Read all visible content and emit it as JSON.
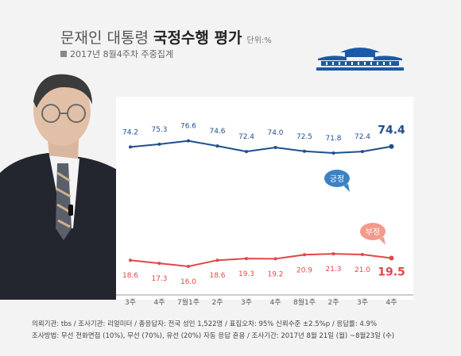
{
  "header": {
    "title_main": "문재인 대통령",
    "title_strong": "국정수행 평가",
    "unit": "단위:%",
    "subtitle": "2017년 8월4주차 주중집계"
  },
  "chart_data": {
    "type": "line",
    "categories": [
      "3주",
      "4주",
      "7월1주",
      "2주",
      "3주",
      "4주",
      "8월1주",
      "2주",
      "3주",
      "4주"
    ],
    "series": [
      {
        "name": "긍정",
        "color": "#1f4e8c",
        "values": [
          74.2,
          75.3,
          76.6,
          74.6,
          72.4,
          74.0,
          72.5,
          71.8,
          72.4,
          74.4
        ]
      },
      {
        "name": "부정",
        "color": "#e04848",
        "values": [
          18.6,
          17.3,
          16.0,
          18.6,
          19.3,
          19.2,
          20.9,
          21.3,
          21.0,
          19.5
        ]
      }
    ],
    "grid": false,
    "legend": "callouts near line ends"
  },
  "footer": {
    "line1": "의뢰기관: tbs / 조사기관: 리얼미터 / 총응답자: 전국 성인 1,522명 / 표집오차: 95% 신뢰수준 ±2.5%p / 응답률: 4.9%",
    "line2": "조사방법: 무선 전화면접 (10%), 무선 (70%), 유선 (20%) 자동 응답 혼용 / 조사기간: 2017년 8월 21일 (월) ~8월23일 (수)"
  },
  "colors": {
    "positive": "#1f4e8c",
    "negative": "#e04848",
    "positive_badge": "#3a82c4",
    "negative_badge": "#f39a8c"
  }
}
